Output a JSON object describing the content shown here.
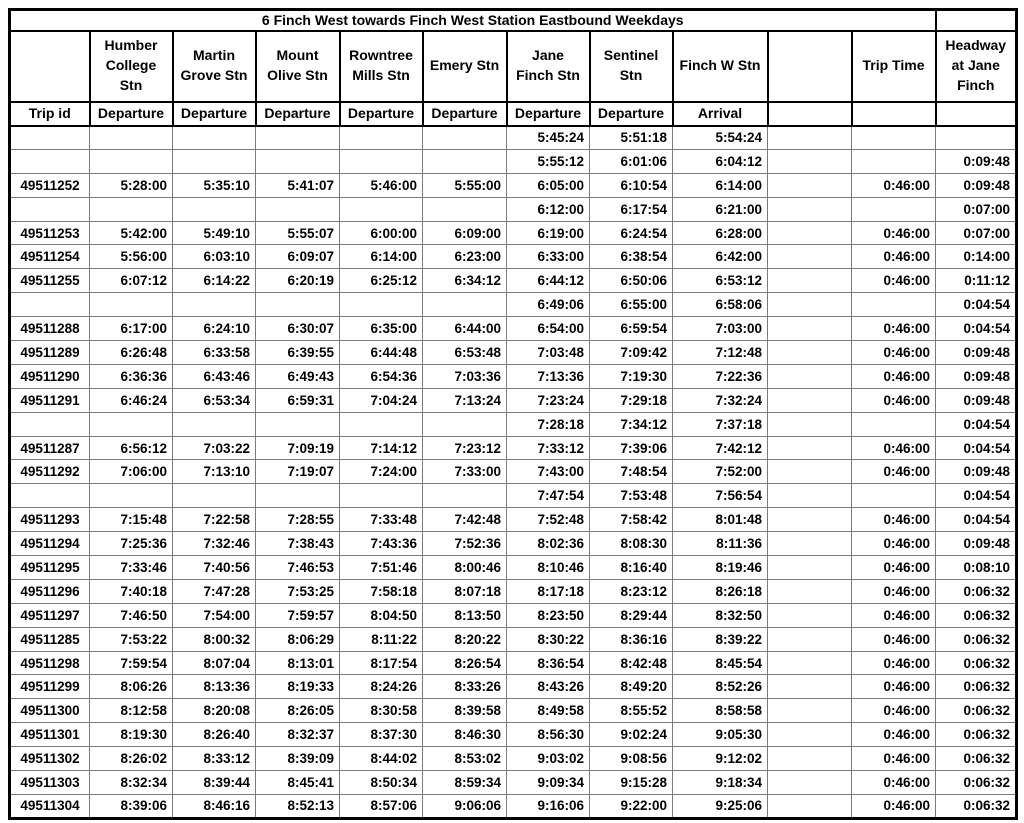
{
  "sheet": {
    "title": "6 Finch West towards Finch West Station Eastbound Weekdays",
    "columns": [
      {
        "station": "",
        "sub": "Trip id"
      },
      {
        "station": "Humber\nCollege\nStn",
        "sub": "Departure"
      },
      {
        "station": "Martin\nGrove Stn",
        "sub": "Departure"
      },
      {
        "station": "Mount\nOlive Stn",
        "sub": "Departure"
      },
      {
        "station": "Rowntree\nMills Stn",
        "sub": "Departure"
      },
      {
        "station": "Emery Stn",
        "sub": "Departure"
      },
      {
        "station": "Jane\nFinch Stn",
        "sub": "Departure"
      },
      {
        "station": "Sentinel\nStn",
        "sub": "Departure"
      },
      {
        "station": "Finch W Stn",
        "sub": "Arrival"
      },
      {
        "station": "",
        "sub": ""
      },
      {
        "station": "Trip Time",
        "sub": ""
      },
      {
        "station": "Headway\nat Jane\nFinch",
        "sub": ""
      }
    ],
    "rows": [
      {
        "trip_id": "",
        "times": [
          "",
          "",
          "",
          "",
          "",
          "5:45:24",
          "5:51:18",
          "5:54:24"
        ],
        "trip_time": "",
        "headway": ""
      },
      {
        "trip_id": "",
        "times": [
          "",
          "",
          "",
          "",
          "",
          "5:55:12",
          "6:01:06",
          "6:04:12"
        ],
        "trip_time": "",
        "headway": "0:09:48"
      },
      {
        "trip_id": "49511252",
        "times": [
          "5:28:00",
          "5:35:10",
          "5:41:07",
          "5:46:00",
          "5:55:00",
          "6:05:00",
          "6:10:54",
          "6:14:00"
        ],
        "trip_time": "0:46:00",
        "headway": "0:09:48"
      },
      {
        "trip_id": "",
        "times": [
          "",
          "",
          "",
          "",
          "",
          "6:12:00",
          "6:17:54",
          "6:21:00"
        ],
        "trip_time": "",
        "headway": "0:07:00"
      },
      {
        "trip_id": "49511253",
        "times": [
          "5:42:00",
          "5:49:10",
          "5:55:07",
          "6:00:00",
          "6:09:00",
          "6:19:00",
          "6:24:54",
          "6:28:00"
        ],
        "trip_time": "0:46:00",
        "headway": "0:07:00"
      },
      {
        "trip_id": "49511254",
        "times": [
          "5:56:00",
          "6:03:10",
          "6:09:07",
          "6:14:00",
          "6:23:00",
          "6:33:00",
          "6:38:54",
          "6:42:00"
        ],
        "trip_time": "0:46:00",
        "headway": "0:14:00"
      },
      {
        "trip_id": "49511255",
        "times": [
          "6:07:12",
          "6:14:22",
          "6:20:19",
          "6:25:12",
          "6:34:12",
          "6:44:12",
          "6:50:06",
          "6:53:12"
        ],
        "trip_time": "0:46:00",
        "headway": "0:11:12"
      },
      {
        "trip_id": "",
        "times": [
          "",
          "",
          "",
          "",
          "",
          "6:49:06",
          "6:55:00",
          "6:58:06"
        ],
        "trip_time": "",
        "headway": "0:04:54"
      },
      {
        "trip_id": "49511288",
        "times": [
          "6:17:00",
          "6:24:10",
          "6:30:07",
          "6:35:00",
          "6:44:00",
          "6:54:00",
          "6:59:54",
          "7:03:00"
        ],
        "trip_time": "0:46:00",
        "headway": "0:04:54"
      },
      {
        "trip_id": "49511289",
        "times": [
          "6:26:48",
          "6:33:58",
          "6:39:55",
          "6:44:48",
          "6:53:48",
          "7:03:48",
          "7:09:42",
          "7:12:48"
        ],
        "trip_time": "0:46:00",
        "headway": "0:09:48"
      },
      {
        "trip_id": "49511290",
        "times": [
          "6:36:36",
          "6:43:46",
          "6:49:43",
          "6:54:36",
          "7:03:36",
          "7:13:36",
          "7:19:30",
          "7:22:36"
        ],
        "trip_time": "0:46:00",
        "headway": "0:09:48"
      },
      {
        "trip_id": "49511291",
        "times": [
          "6:46:24",
          "6:53:34",
          "6:59:31",
          "7:04:24",
          "7:13:24",
          "7:23:24",
          "7:29:18",
          "7:32:24"
        ],
        "trip_time": "0:46:00",
        "headway": "0:09:48"
      },
      {
        "trip_id": "",
        "times": [
          "",
          "",
          "",
          "",
          "",
          "7:28:18",
          "7:34:12",
          "7:37:18"
        ],
        "trip_time": "",
        "headway": "0:04:54"
      },
      {
        "trip_id": "49511287",
        "times": [
          "6:56:12",
          "7:03:22",
          "7:09:19",
          "7:14:12",
          "7:23:12",
          "7:33:12",
          "7:39:06",
          "7:42:12"
        ],
        "trip_time": "0:46:00",
        "headway": "0:04:54"
      },
      {
        "trip_id": "49511292",
        "times": [
          "7:06:00",
          "7:13:10",
          "7:19:07",
          "7:24:00",
          "7:33:00",
          "7:43:00",
          "7:48:54",
          "7:52:00"
        ],
        "trip_time": "0:46:00",
        "headway": "0:09:48"
      },
      {
        "trip_id": "",
        "times": [
          "",
          "",
          "",
          "",
          "",
          "7:47:54",
          "7:53:48",
          "7:56:54"
        ],
        "trip_time": "",
        "headway": "0:04:54"
      },
      {
        "trip_id": "49511293",
        "times": [
          "7:15:48",
          "7:22:58",
          "7:28:55",
          "7:33:48",
          "7:42:48",
          "7:52:48",
          "7:58:42",
          "8:01:48"
        ],
        "trip_time": "0:46:00",
        "headway": "0:04:54"
      },
      {
        "trip_id": "49511294",
        "times": [
          "7:25:36",
          "7:32:46",
          "7:38:43",
          "7:43:36",
          "7:52:36",
          "8:02:36",
          "8:08:30",
          "8:11:36"
        ],
        "trip_time": "0:46:00",
        "headway": "0:09:48"
      },
      {
        "trip_id": "49511295",
        "times": [
          "7:33:46",
          "7:40:56",
          "7:46:53",
          "7:51:46",
          "8:00:46",
          "8:10:46",
          "8:16:40",
          "8:19:46"
        ],
        "trip_time": "0:46:00",
        "headway": "0:08:10"
      },
      {
        "trip_id": "49511296",
        "times": [
          "7:40:18",
          "7:47:28",
          "7:53:25",
          "7:58:18",
          "8:07:18",
          "8:17:18",
          "8:23:12",
          "8:26:18"
        ],
        "trip_time": "0:46:00",
        "headway": "0:06:32"
      },
      {
        "trip_id": "49511297",
        "times": [
          "7:46:50",
          "7:54:00",
          "7:59:57",
          "8:04:50",
          "8:13:50",
          "8:23:50",
          "8:29:44",
          "8:32:50"
        ],
        "trip_time": "0:46:00",
        "headway": "0:06:32"
      },
      {
        "trip_id": "49511285",
        "times": [
          "7:53:22",
          "8:00:32",
          "8:06:29",
          "8:11:22",
          "8:20:22",
          "8:30:22",
          "8:36:16",
          "8:39:22"
        ],
        "trip_time": "0:46:00",
        "headway": "0:06:32"
      },
      {
        "trip_id": "49511298",
        "times": [
          "7:59:54",
          "8:07:04",
          "8:13:01",
          "8:17:54",
          "8:26:54",
          "8:36:54",
          "8:42:48",
          "8:45:54"
        ],
        "trip_time": "0:46:00",
        "headway": "0:06:32"
      },
      {
        "trip_id": "49511299",
        "times": [
          "8:06:26",
          "8:13:36",
          "8:19:33",
          "8:24:26",
          "8:33:26",
          "8:43:26",
          "8:49:20",
          "8:52:26"
        ],
        "trip_time": "0:46:00",
        "headway": "0:06:32"
      },
      {
        "trip_id": "49511300",
        "times": [
          "8:12:58",
          "8:20:08",
          "8:26:05",
          "8:30:58",
          "8:39:58",
          "8:49:58",
          "8:55:52",
          "8:58:58"
        ],
        "trip_time": "0:46:00",
        "headway": "0:06:32"
      },
      {
        "trip_id": "49511301",
        "times": [
          "8:19:30",
          "8:26:40",
          "8:32:37",
          "8:37:30",
          "8:46:30",
          "8:56:30",
          "9:02:24",
          "9:05:30"
        ],
        "trip_time": "0:46:00",
        "headway": "0:06:32"
      },
      {
        "trip_id": "49511302",
        "times": [
          "8:26:02",
          "8:33:12",
          "8:39:09",
          "8:44:02",
          "8:53:02",
          "9:03:02",
          "9:08:56",
          "9:12:02"
        ],
        "trip_time": "0:46:00",
        "headway": "0:06:32"
      },
      {
        "trip_id": "49511303",
        "times": [
          "8:32:34",
          "8:39:44",
          "8:45:41",
          "8:50:34",
          "8:59:34",
          "9:09:34",
          "9:15:28",
          "9:18:34"
        ],
        "trip_time": "0:46:00",
        "headway": "0:06:32"
      },
      {
        "trip_id": "49511304",
        "times": [
          "8:39:06",
          "8:46:16",
          "8:52:13",
          "8:57:06",
          "9:06:06",
          "9:16:06",
          "9:22:00",
          "9:25:06"
        ],
        "trip_time": "0:46:00",
        "headway": "0:06:32"
      }
    ]
  }
}
